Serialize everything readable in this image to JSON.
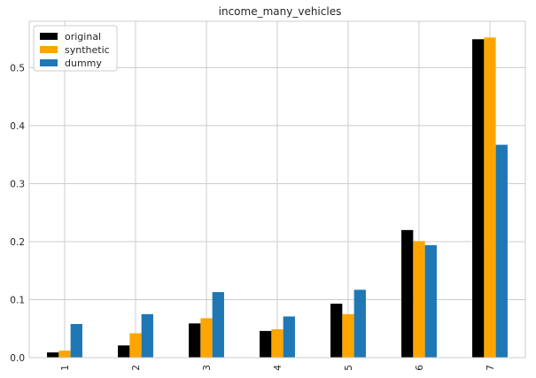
{
  "chart_data": {
    "type": "bar",
    "title": "income_many_vehicles",
    "xlabel": "",
    "ylabel": "",
    "categories": [
      "1",
      "2",
      "3",
      "4",
      "5",
      "6",
      "7"
    ],
    "series": [
      {
        "name": "original",
        "color": "#000000",
        "values": [
          0.009,
          0.021,
          0.059,
          0.046,
          0.093,
          0.22,
          0.549
        ]
      },
      {
        "name": "synthetic",
        "color": "#ffa500",
        "values": [
          0.012,
          0.042,
          0.068,
          0.049,
          0.075,
          0.201,
          0.552
        ]
      },
      {
        "name": "dummy",
        "color": "#1f77b4",
        "values": [
          0.058,
          0.075,
          0.113,
          0.071,
          0.117,
          0.194,
          0.367
        ]
      }
    ],
    "ylim": [
      0,
      0.58
    ],
    "yticks": [
      "0.0",
      "0.1",
      "0.2",
      "0.3",
      "0.4",
      "0.5"
    ],
    "ytick_values": [
      0.0,
      0.1,
      0.2,
      0.3,
      0.4,
      0.5
    ],
    "grid": true,
    "legend_position": "top-left",
    "xtick_rotation": "vertical"
  }
}
